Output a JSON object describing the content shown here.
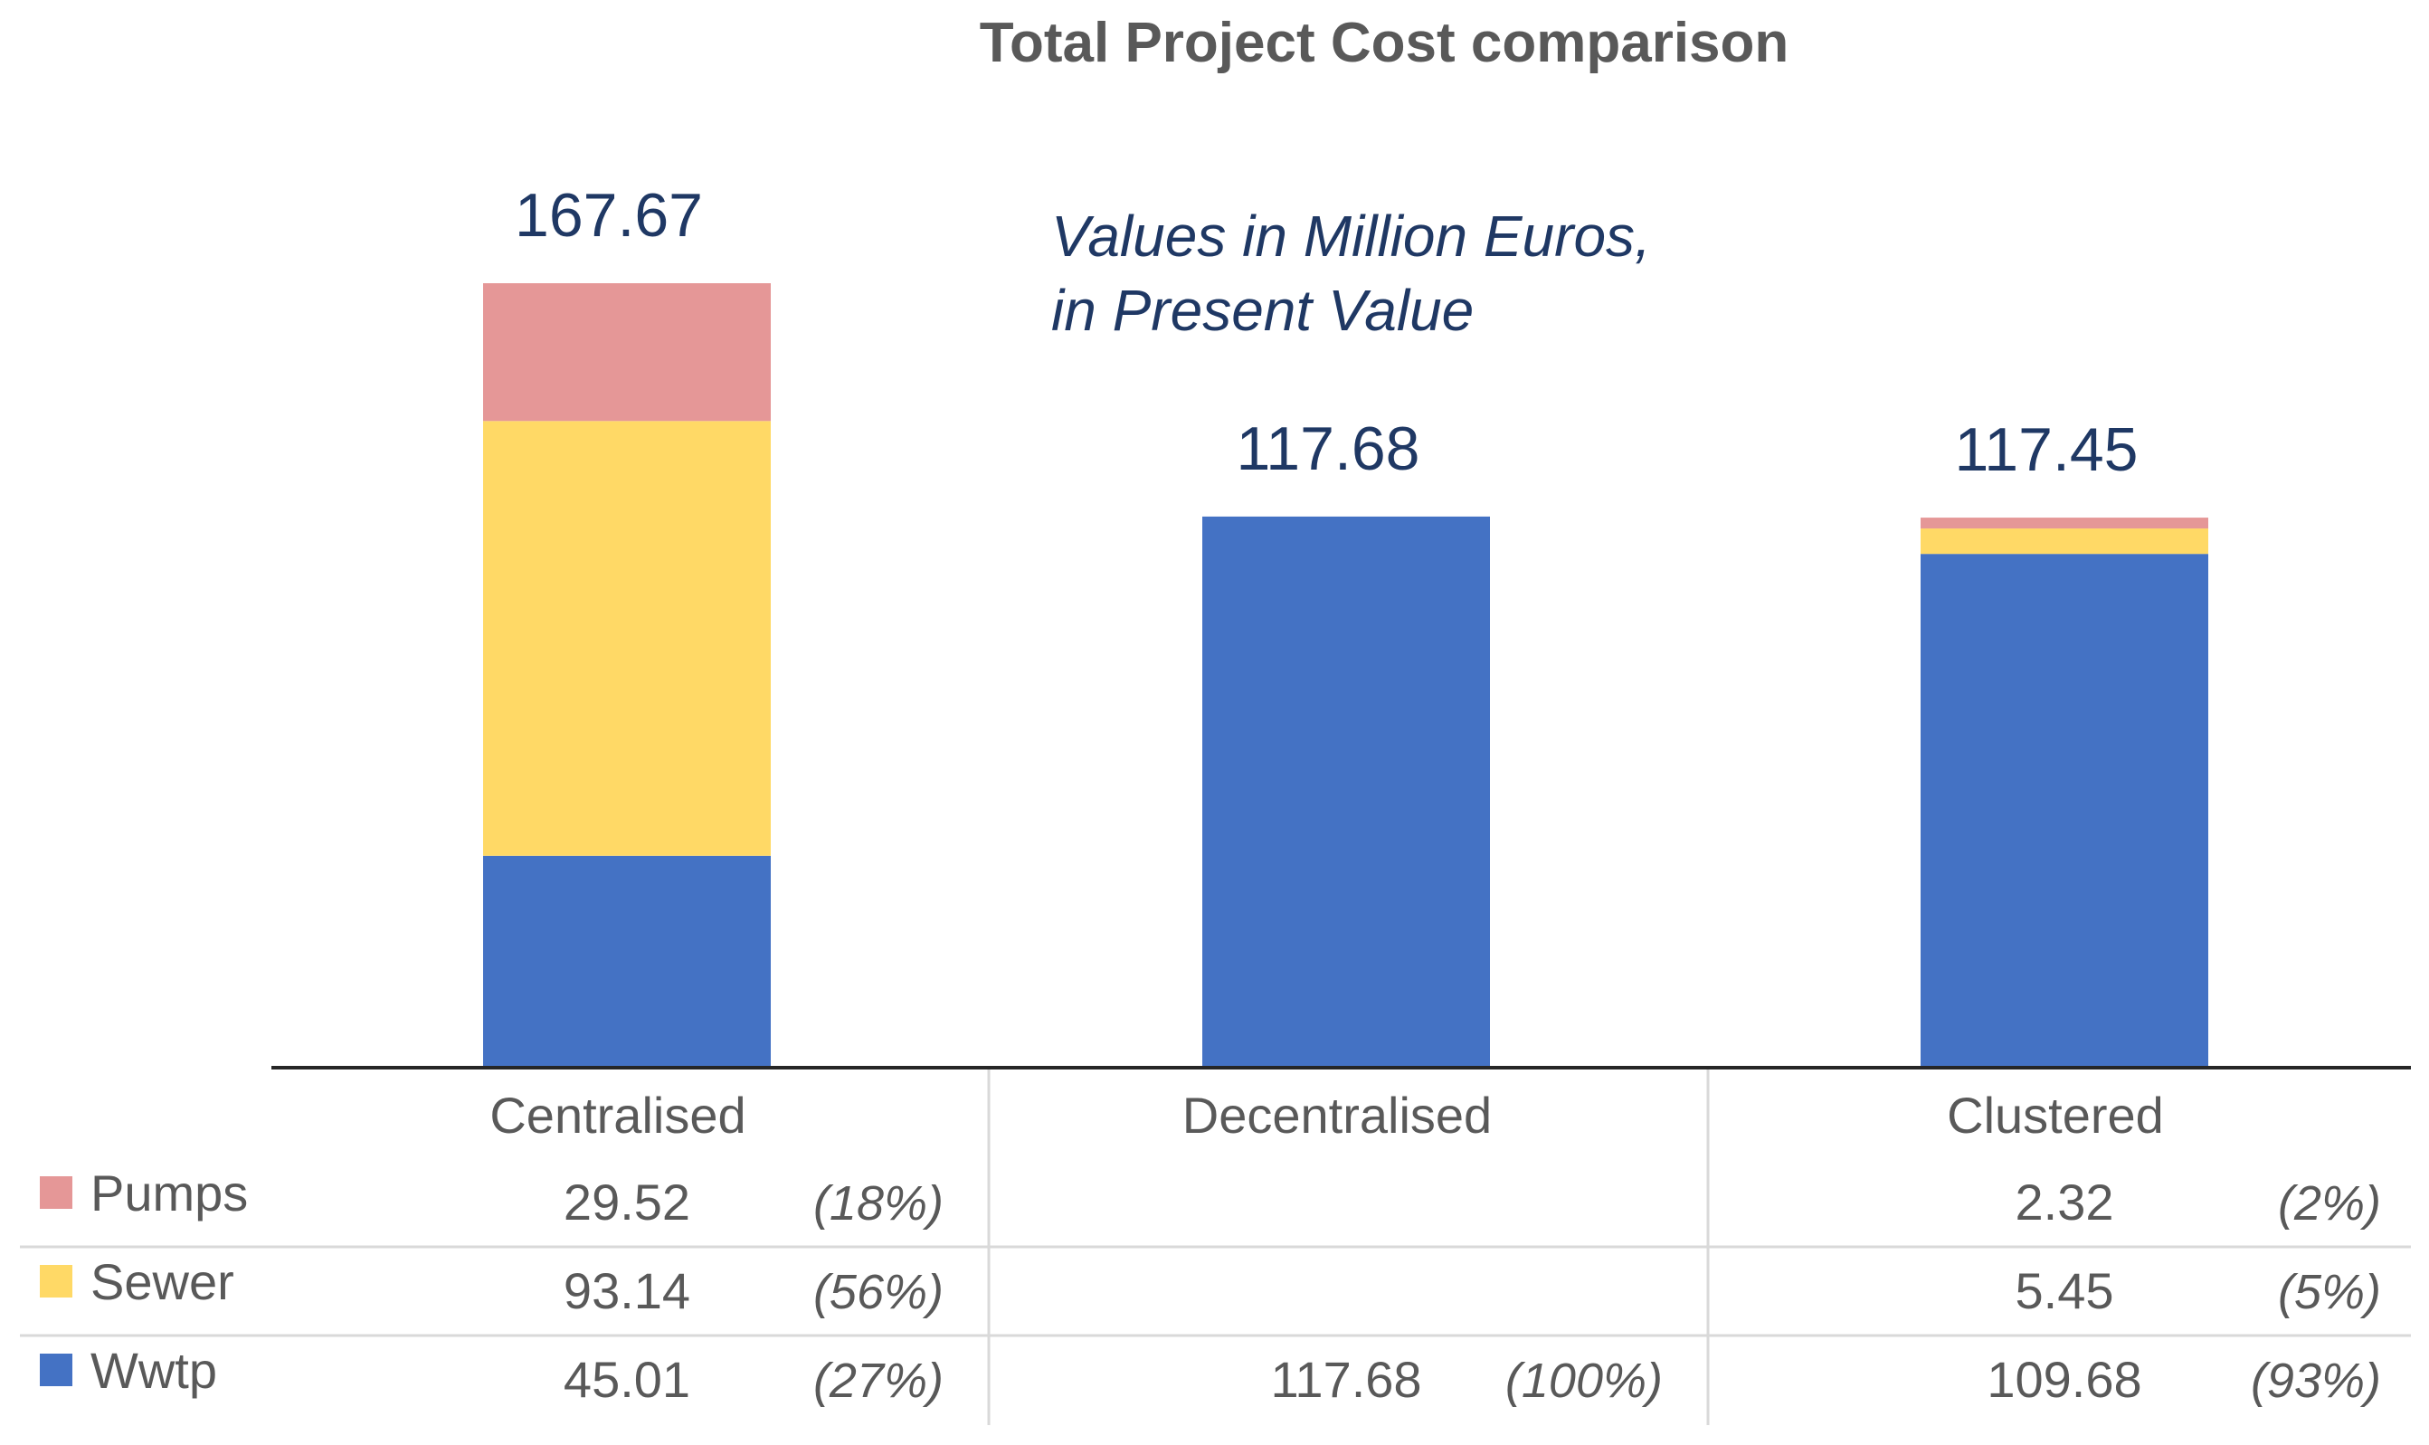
{
  "chart_data": {
    "type": "bar",
    "stacked": true,
    "title": "Total Project Cost comparison",
    "note_lines": [
      "Values in Million Euros,",
      "in Present Value"
    ],
    "categories": [
      "Centralised",
      "Decentralised",
      "Clustered"
    ],
    "totals": [
      "167.67",
      "117.68",
      "117.45"
    ],
    "series": [
      {
        "name": "Wwtp",
        "color": "#4472c4",
        "values": [
          45.01,
          117.68,
          109.68
        ],
        "labels": [
          "45.01",
          "117.68",
          "109.68"
        ],
        "pct": [
          "(27%)",
          "(100%)",
          "(93%)"
        ]
      },
      {
        "name": "Sewer",
        "color": "#ffd966",
        "values": [
          93.14,
          null,
          5.45
        ],
        "labels": [
          "93.14",
          "",
          "5.45"
        ],
        "pct": [
          "(56%)",
          "",
          "(5%)"
        ]
      },
      {
        "name": "Pumps",
        "color": "#e59797",
        "values": [
          29.52,
          null,
          2.32
        ],
        "labels": [
          "29.52",
          "",
          "2.32"
        ],
        "pct": [
          "(18%)",
          "",
          "(2%)"
        ]
      }
    ],
    "table_row_order": [
      "Pumps",
      "Sewer",
      "Wwtp"
    ],
    "ylim": [
      0,
      167.67
    ],
    "xlabel": "",
    "ylabel": "",
    "grid": false,
    "legend": "data-table-left"
  }
}
